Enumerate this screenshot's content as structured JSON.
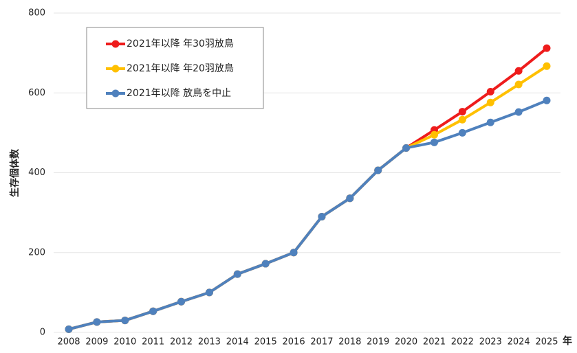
{
  "chart_data": {
    "type": "line",
    "y_label": "生存個体数",
    "x_label": "年",
    "categories": [
      "2008",
      "2009",
      "2010",
      "2011",
      "2012",
      "2013",
      "2014",
      "2015",
      "2016",
      "2017",
      "2018",
      "2019",
      "2020",
      "2021",
      "2022",
      "2023",
      "2024",
      "2025"
    ],
    "series": [
      {
        "name": "2021年以降 年30羽放鳥",
        "color": "#ee1c1c",
        "values": [
          8,
          26,
          30,
          53,
          77,
          100,
          146,
          172,
          200,
          290,
          336,
          406,
          462,
          507,
          553,
          603,
          655,
          712
        ]
      },
      {
        "name": "2021年以降 年20羽放鳥",
        "color": "#ffc000",
        "values": [
          8,
          26,
          30,
          53,
          77,
          100,
          146,
          172,
          200,
          290,
          336,
          406,
          462,
          495,
          533,
          576,
          621,
          667
        ]
      },
      {
        "name": "2021年以降 放鳥を中止",
        "color": "#4f81bd",
        "values": [
          8,
          26,
          30,
          53,
          77,
          100,
          146,
          172,
          200,
          290,
          336,
          406,
          462,
          476,
          500,
          526,
          552,
          581
        ]
      }
    ],
    "ylim": [
      0,
      800
    ],
    "yticks": [
      0,
      200,
      400,
      600,
      800
    ],
    "grid": true,
    "legend": "upper left"
  }
}
